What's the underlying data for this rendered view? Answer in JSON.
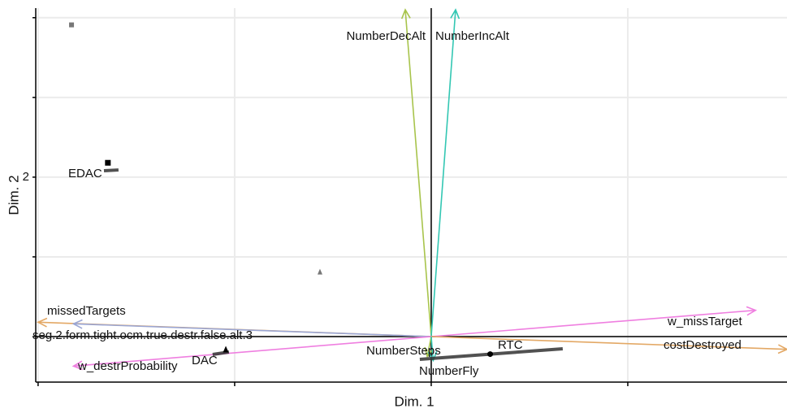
{
  "chart_data": {
    "type": "biplot",
    "xlabel": "Dim. 1",
    "ylabel": "Dim. 2",
    "xlim": [
      -2.012,
      1.81
    ],
    "ylim": [
      -0.571,
      4.12
    ],
    "xticks": [
      -2,
      -1,
      0,
      1
    ],
    "yticks": [
      2
    ],
    "yticks_unlabeled": [
      0,
      1,
      3,
      4
    ],
    "grid": true,
    "vectors": [
      {
        "name": "NumberDecAlt",
        "color": "#a8c44c",
        "x": -0.132,
        "y": 4.1
      },
      {
        "name": "NumberIncAlt",
        "color": "#33c7b3",
        "x": 0.124,
        "y": 4.1
      },
      {
        "name": "missedTargets",
        "color": "#e3a865",
        "x": -2.0,
        "y": 0.18
      },
      {
        "name": "seg.2.form.tight.ocm.true.destr.false.alt.3",
        "color": "#9aa6d4",
        "x": -1.82,
        "y": 0.16
      },
      {
        "name": "w_destrProbability",
        "color": "#ef7fe0",
        "x": -1.82,
        "y": -0.37
      },
      {
        "name": "w_missTarget",
        "color": "#ef7fe0",
        "x": 1.65,
        "y": 0.33
      },
      {
        "name": "costDestroyed",
        "color": "#e3a865",
        "x": 1.81,
        "y": -0.16
      },
      {
        "name": "NumberSteps",
        "color": "#a8c44c",
        "x": -0.02,
        "y": -0.25
      },
      {
        "name": "NumberFly",
        "color": "#33c7b3",
        "x": 0.01,
        "y": -0.3
      }
    ],
    "points": [
      {
        "label": "EDAC",
        "shape": "square",
        "color": "#000000",
        "x": -1.645,
        "y": 2.18,
        "segment": [
          [
            -1.665,
            2.08
          ],
          [
            -1.591,
            2.09
          ]
        ]
      },
      {
        "label": "DAC",
        "shape": "triangle",
        "color": "#000000",
        "x": -1.045,
        "y": -0.163,
        "segment": [
          [
            -1.112,
            -0.224
          ],
          [
            -1.029,
            -0.194
          ]
        ]
      },
      {
        "label": "RTC",
        "shape": "circle",
        "color": "#000000",
        "x": 0.3,
        "y": -0.22,
        "segment": [
          [
            -0.058,
            -0.286
          ],
          [
            0.669,
            -0.153
          ]
        ]
      }
    ],
    "extra_points": [
      {
        "shape": "square",
        "color": "#777777",
        "x": -1.83,
        "y": 3.91
      },
      {
        "shape": "triangle",
        "color": "#777777",
        "x": -0.566,
        "y": 0.81
      }
    ]
  }
}
